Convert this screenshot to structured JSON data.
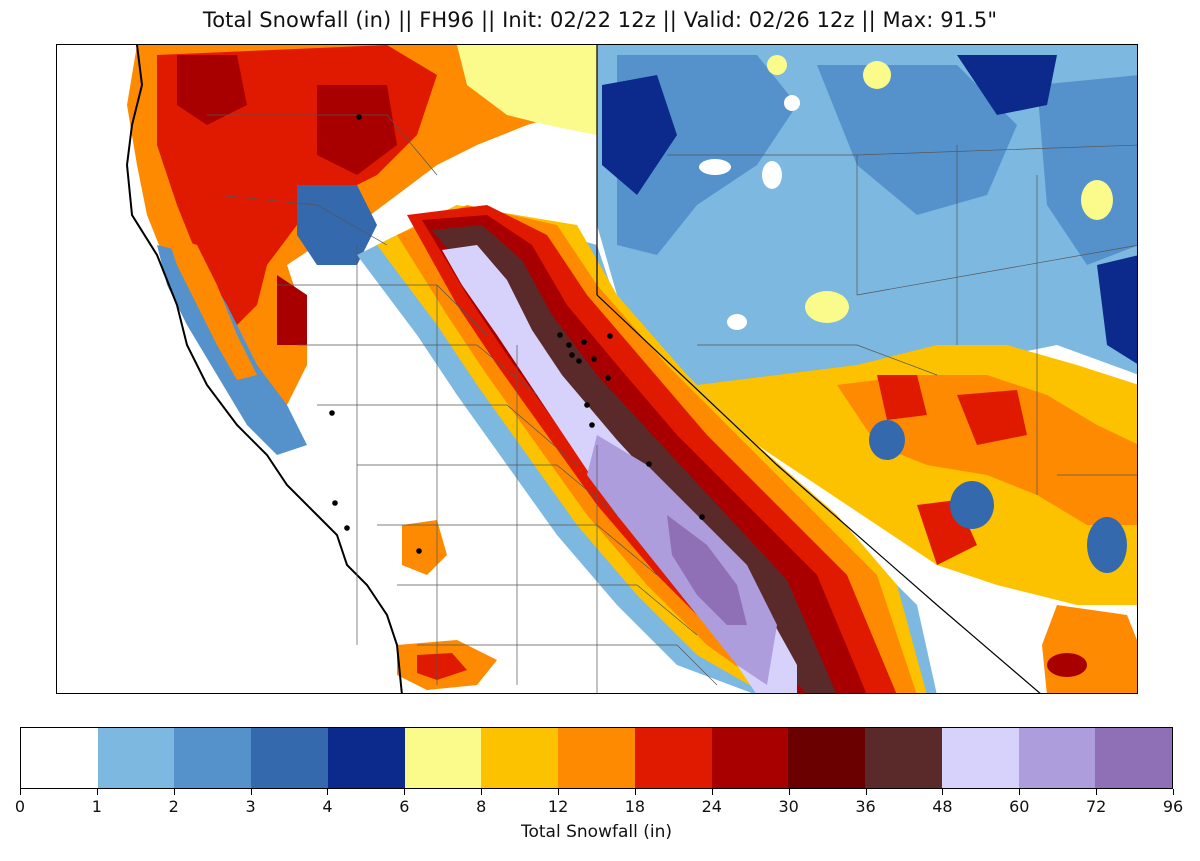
{
  "title": "Total Snowfall (in) || FH96 || Init: 02/22 12z || Valid: 02/26 12z || Max: 91.5\"",
  "colorbar": {
    "label": "Total Snowfall (in)",
    "ticks": [
      "0",
      "1",
      "2",
      "3",
      "4",
      "6",
      "8",
      "12",
      "18",
      "24",
      "30",
      "36",
      "48",
      "60",
      "72",
      "96"
    ],
    "colors": [
      "#ffffff",
      "#7db8e0",
      "#5592cc",
      "#3569ad",
      "#0b2a8c",
      "#fbfb8c",
      "#fcc200",
      "#fd8a00",
      "#e01a00",
      "#a80000",
      "#6a0000",
      "#5a2a2a",
      "#d6d2fb",
      "#ad9ddd",
      "#8f6fb5"
    ]
  },
  "map": {
    "region": "California / Nevada",
    "layers": [
      "state-borders",
      "county-borders",
      "coastline",
      "snowfall-contours",
      "ski-resort-markers"
    ],
    "colors": {
      "frame": "#000000",
      "county_line": "#555555",
      "state_line": "#000000",
      "marker": "#000000"
    }
  }
}
